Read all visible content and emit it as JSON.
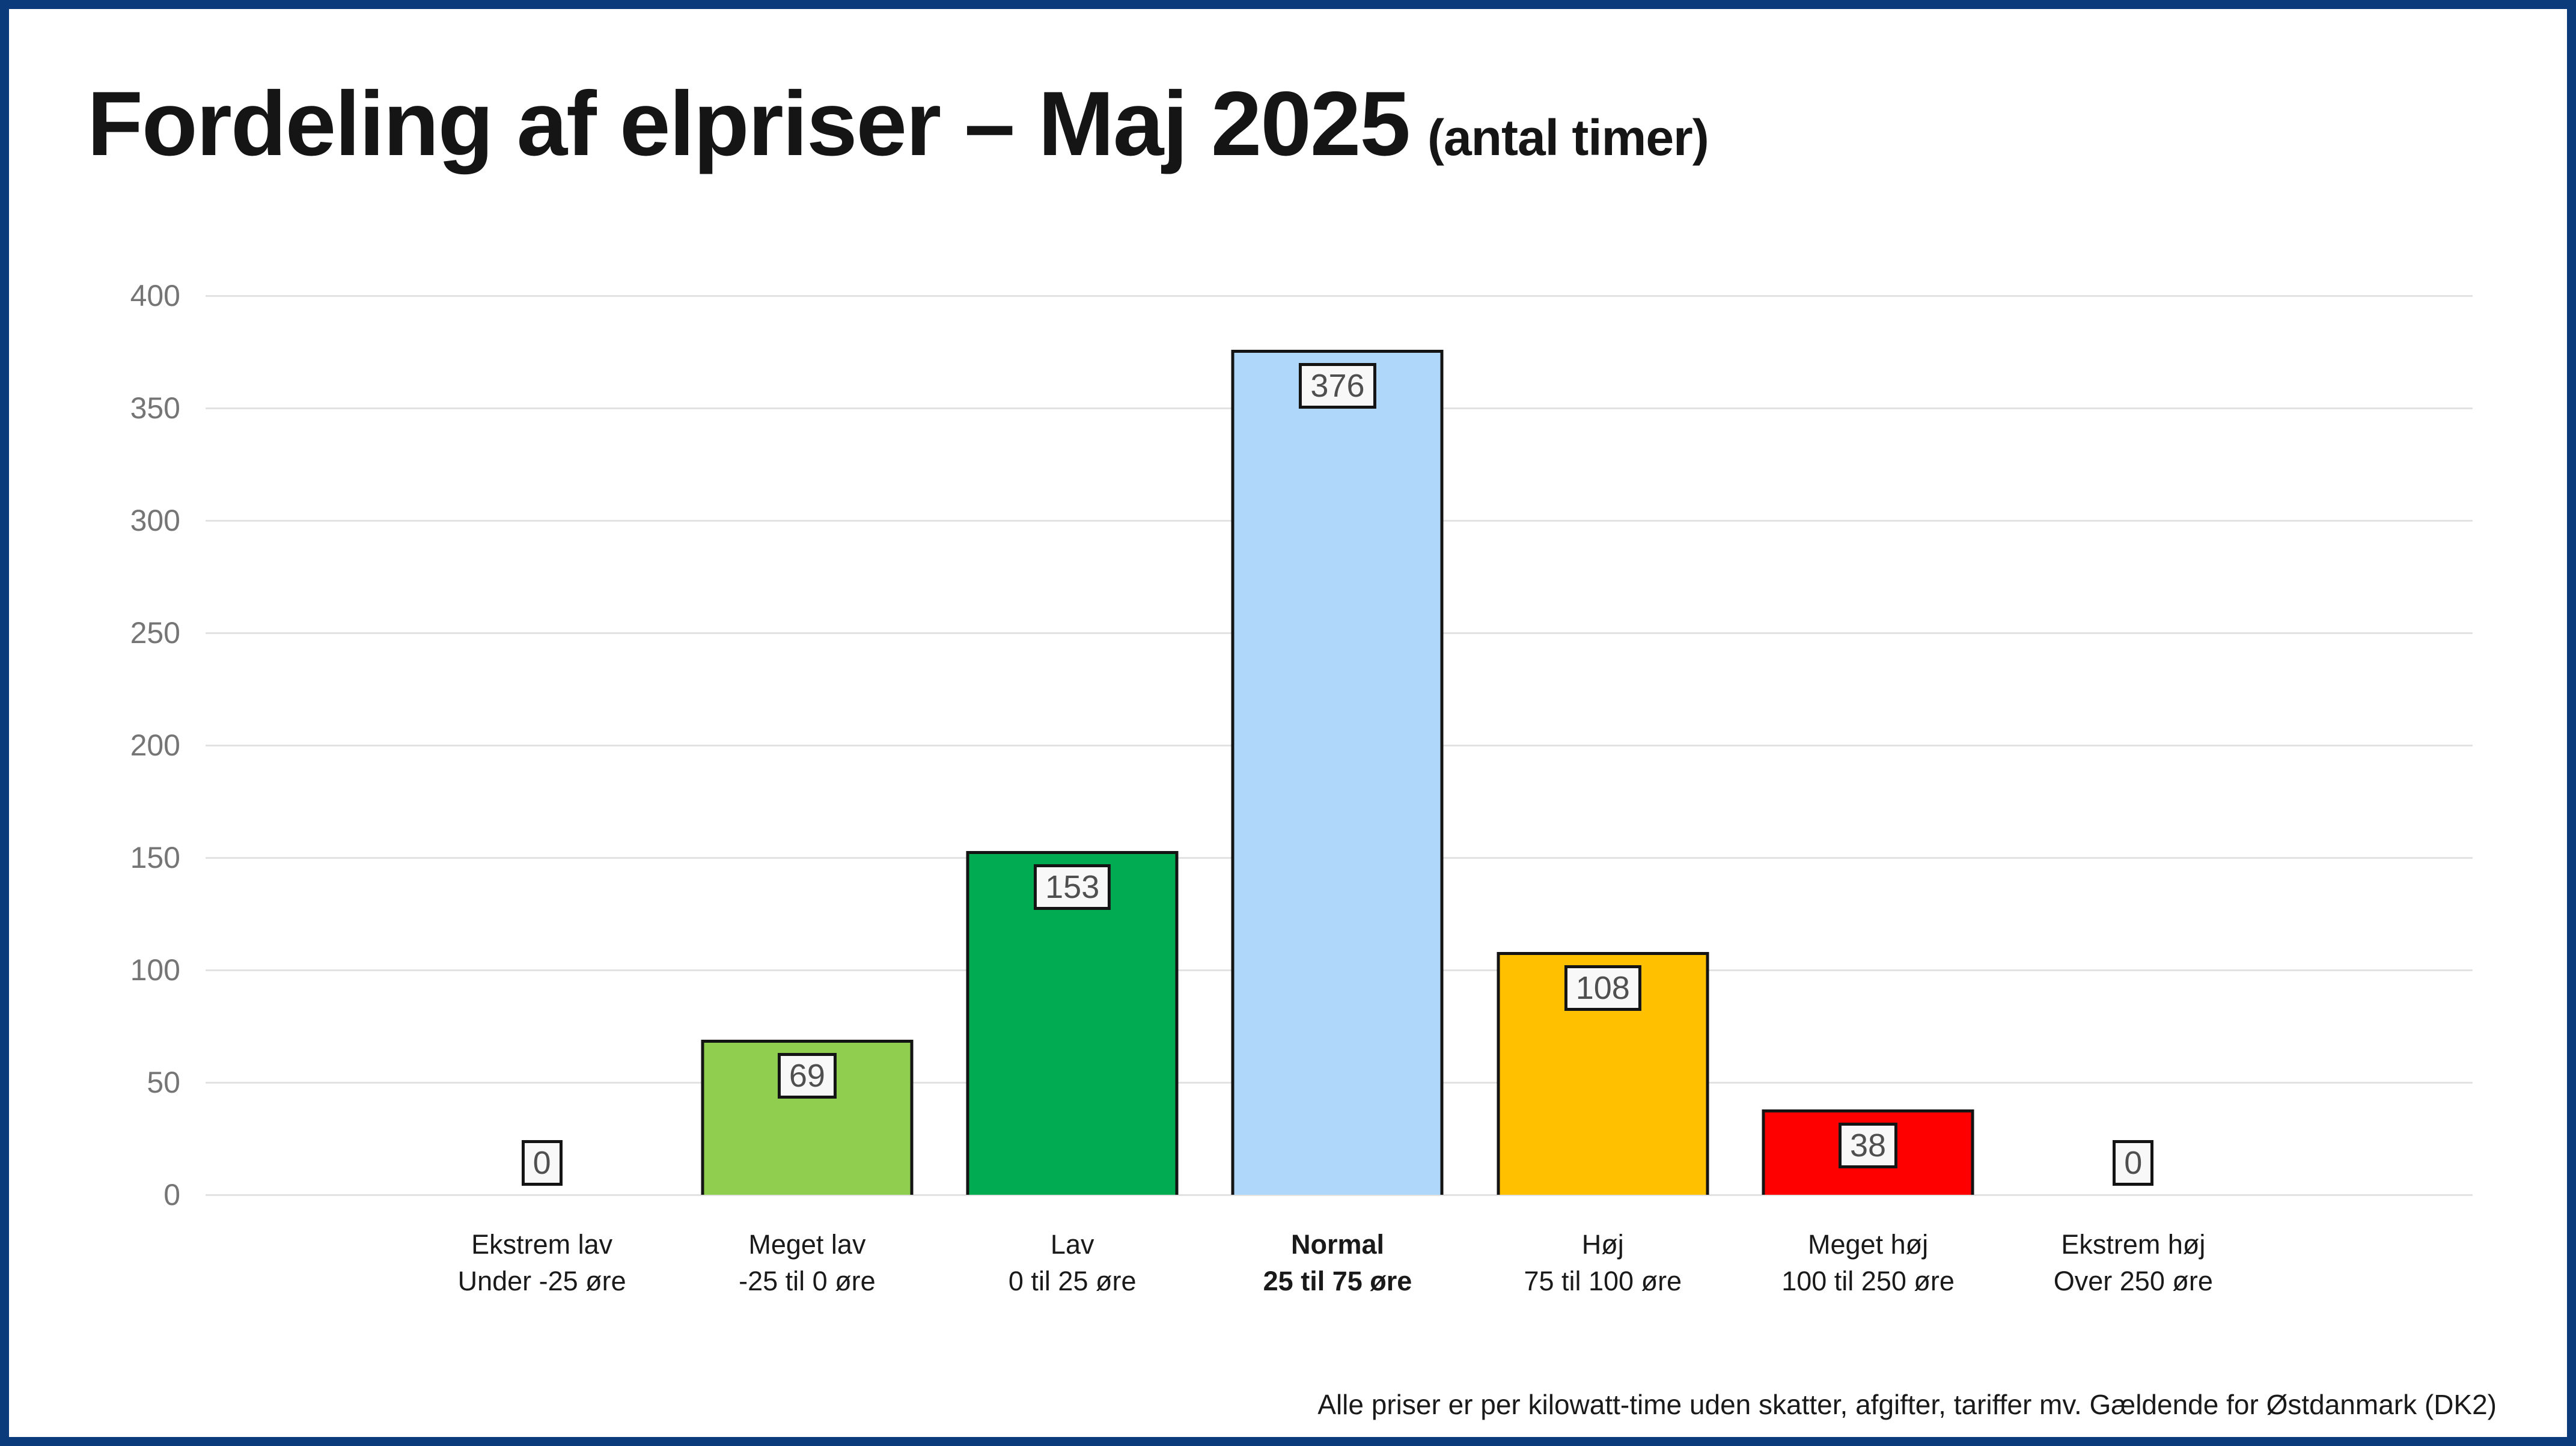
{
  "header": {
    "title": "Fordeling af elpriser – Maj 2025",
    "subtitle": "(antal timer)"
  },
  "footer": {
    "note": "Alle priser er per kilowatt-time uden skatter, afgifter, tariffer mv. Gældende for Østdanmark (DK2)"
  },
  "colors": {
    "frame": "#0b3b7a",
    "gridline": "#e2e2e2",
    "axis_tick_text": "#757575",
    "category_text": "#1a1a1a",
    "value_text": "#4f4f4f",
    "value_box_bg": "#f8f8f8",
    "bar_border": "#141414"
  },
  "chart_data": {
    "type": "bar",
    "title": "Fordeling af elpriser – Maj 2025",
    "subtitle_unit": "antal timer",
    "categories": [
      "Ekstrem lav",
      "Meget lav",
      "Lav",
      "Normal",
      "Høj",
      "Meget høj",
      "Ekstrem høj"
    ],
    "category_sublabels": [
      "Under -25 øre",
      "-25 til 0 øre",
      "0 til 25 øre",
      "25 til 75 øre",
      "75 til 100 øre",
      "100 til 250 øre",
      "Over 250 øre"
    ],
    "values": [
      0,
      69,
      153,
      376,
      108,
      38,
      0
    ],
    "bar_colors": [
      null,
      "#90ce4f",
      "#00ab52",
      "#afd7fa",
      "#ffc000",
      "#ff0000",
      null
    ],
    "emphasized_index": 3,
    "value_labels_shown": true,
    "xlabel": "",
    "ylabel": "",
    "ylim": [
      0,
      400
    ],
    "ytick_step": 50,
    "yticks": [
      0,
      50,
      100,
      150,
      200,
      250,
      300,
      350,
      400
    ],
    "grid": true,
    "legend": false,
    "footnote": "Alle priser er per kilowatt-time uden skatter, afgifter, tariffer mv. Gældende for Østdanmark (DK2)"
  }
}
